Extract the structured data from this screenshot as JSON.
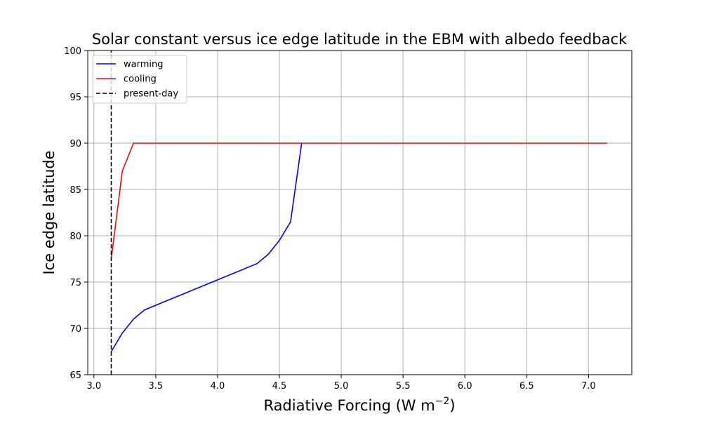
{
  "chart_data": {
    "type": "line",
    "title": "Solar constant versus ice edge latitude in the EBM with albedo feedback",
    "xlabel": "Radiative Forcing (W m",
    "xlabel_sup": "−2",
    "xlabel_suffix": ")",
    "ylabel": "Ice edge latitude",
    "xlim": [
      2.95,
      7.35
    ],
    "ylim": [
      65,
      100
    ],
    "xticks": [
      "3.0",
      "3.5",
      "4.0",
      "4.5",
      "5.0",
      "5.5",
      "6.0",
      "6.5",
      "7.0"
    ],
    "yticks": [
      "65",
      "70",
      "75",
      "80",
      "85",
      "90",
      "95",
      "100"
    ],
    "grid": true,
    "legend_position": "top-left",
    "series": [
      {
        "name": "warming",
        "color": "#0000ff",
        "style": "solid",
        "x": [
          3.14,
          3.23,
          3.32,
          3.41,
          4.32,
          4.41,
          4.5,
          4.59,
          4.68
        ],
        "y": [
          67.5,
          69.5,
          71.0,
          72.0,
          77.0,
          78.0,
          79.5,
          81.5,
          90.0
        ]
      },
      {
        "name": "cooling",
        "color": "#ff0000",
        "style": "solid",
        "x": [
          3.14,
          3.23,
          3.32,
          7.15
        ],
        "y": [
          77.5,
          87.0,
          90.0,
          90.0
        ]
      },
      {
        "name": "present-day",
        "color": "#000000",
        "style": "dashed",
        "x": [
          3.14,
          3.14
        ],
        "y": [
          65,
          100
        ]
      }
    ]
  }
}
